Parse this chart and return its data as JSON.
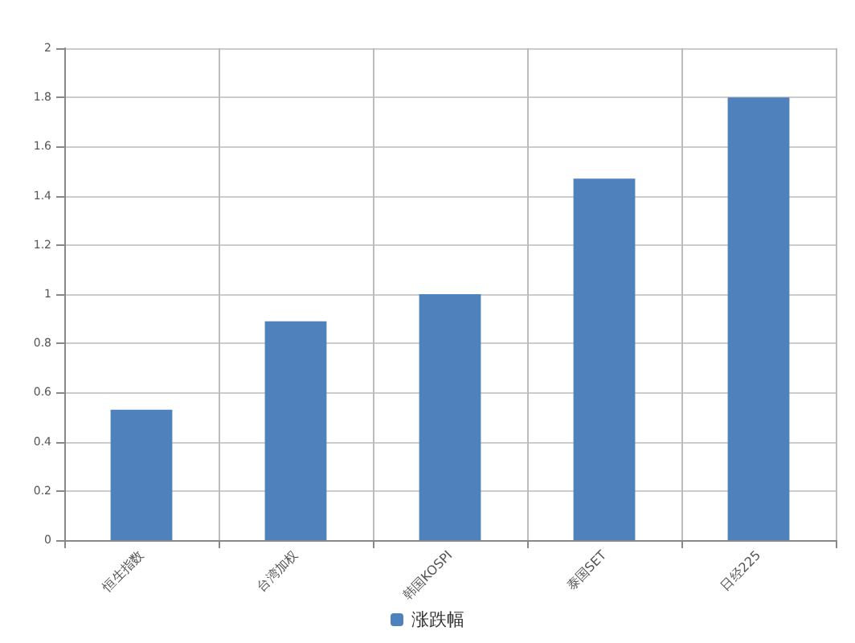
{
  "chart_data": {
    "type": "bar",
    "categories": [
      "恒生指数",
      "台湾加权",
      "韩国KOSPI",
      "泰国SET",
      "日经225"
    ],
    "series": [
      {
        "name": "涨跌幅",
        "color": "#4f81bd",
        "values": [
          0.53,
          0.89,
          1.0,
          1.47,
          1.8
        ]
      }
    ],
    "ylim": [
      0,
      2
    ],
    "yticks": [
      0,
      0.2,
      0.4,
      0.6,
      0.8,
      1,
      1.2,
      1.4,
      1.6,
      1.8,
      2
    ],
    "grid": true,
    "legend": "bottom"
  }
}
